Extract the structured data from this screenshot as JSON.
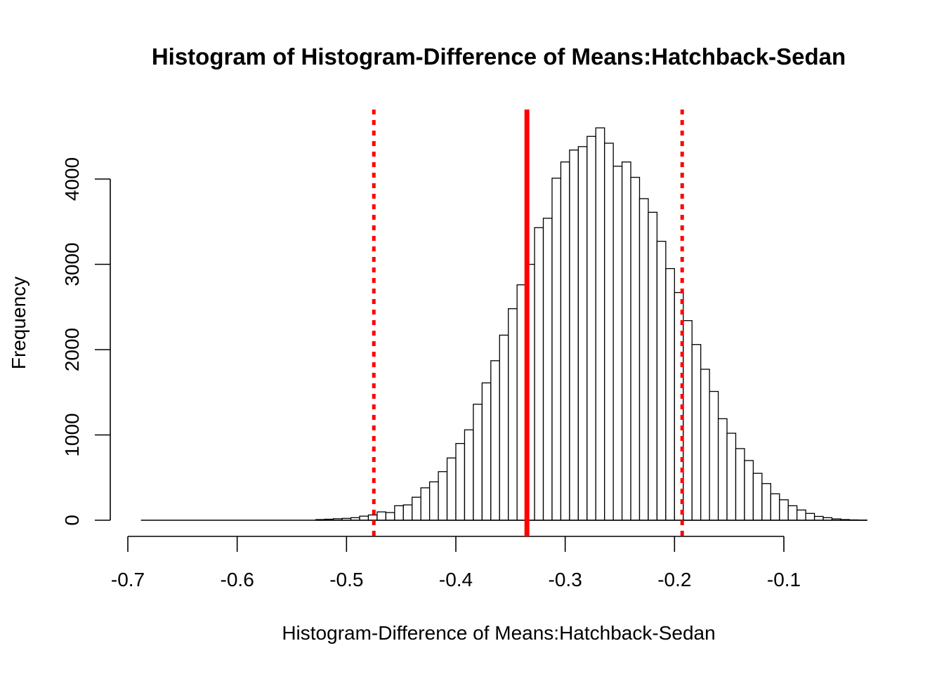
{
  "chart_data": {
    "type": "bar",
    "title": "Histogram of  Histogram-Difference of Means:Hatchback-Sedan",
    "xlabel": "Histogram-Difference of Means:Hatchback-Sedan",
    "ylabel": "Frequency",
    "xlim": [
      -0.7,
      -0.1
    ],
    "ylim": [
      0,
      4000
    ],
    "x_ticks": [
      "-0.7",
      "-0.6",
      "-0.5",
      "-0.4",
      "-0.3",
      "-0.2",
      "-0.1"
    ],
    "y_ticks": [
      "0",
      "1000",
      "2000",
      "3000",
      "4000"
    ],
    "bin_width": 0.008,
    "bin_start": -0.688,
    "values": [
      0,
      0,
      0,
      0,
      0,
      0,
      0,
      0,
      0,
      0,
      0,
      0,
      0,
      0,
      0,
      0,
      0,
      0,
      0,
      0,
      8,
      12,
      18,
      22,
      30,
      48,
      62,
      98,
      90,
      170,
      180,
      270,
      380,
      450,
      570,
      730,
      900,
      1060,
      1360,
      1610,
      1870,
      2170,
      2480,
      2760,
      3000,
      3430,
      3540,
      4010,
      4200,
      4340,
      4380,
      4500,
      4600,
      4420,
      4150,
      4200,
      4020,
      3770,
      3610,
      3270,
      2950,
      2670,
      2340,
      2060,
      1770,
      1510,
      1190,
      1020,
      840,
      700,
      550,
      430,
      310,
      240,
      170,
      120,
      80,
      45,
      30,
      16,
      8,
      4,
      2
    ],
    "reference_lines": [
      {
        "x": -0.475,
        "style": "dotted",
        "color": "#ff0000"
      },
      {
        "x": -0.335,
        "style": "solid",
        "color": "#ff0000"
      },
      {
        "x": -0.193,
        "style": "dotted",
        "color": "#ff0000"
      }
    ],
    "colors": {
      "bar_fill": "#ffffff",
      "bar_stroke": "#000000",
      "reference": "#ff0000"
    }
  }
}
